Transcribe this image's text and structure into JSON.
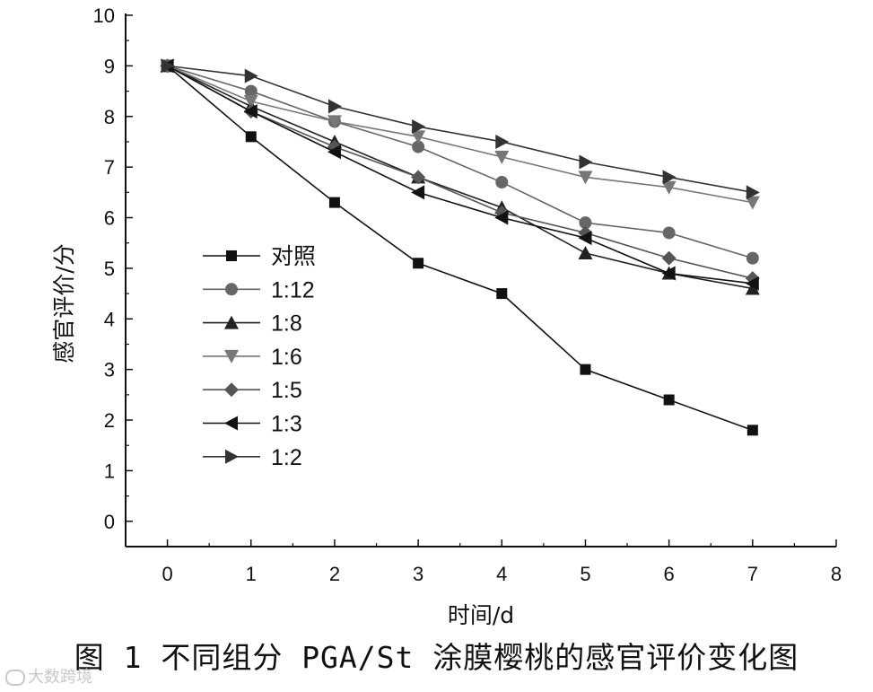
{
  "chart_data": {
    "type": "line",
    "title": "",
    "xlabel": "时间/d",
    "ylabel": "感官评价/分",
    "xlim": [
      -0.5,
      8
    ],
    "ylim": [
      -0.5,
      10
    ],
    "x_ticks": [
      0,
      1,
      2,
      3,
      4,
      5,
      6,
      7,
      8
    ],
    "y_ticks": [
      0,
      1,
      2,
      3,
      4,
      5,
      6,
      7,
      8,
      9,
      10
    ],
    "x": [
      0,
      1,
      2,
      3,
      4,
      5,
      6,
      7
    ],
    "legend_position": "left-center",
    "series": [
      {
        "name": "对照",
        "marker": "square",
        "color": "#111111",
        "values": [
          9.0,
          7.6,
          6.3,
          5.1,
          4.5,
          3.0,
          2.4,
          1.8
        ]
      },
      {
        "name": "1:12",
        "marker": "circle",
        "color": "#666666",
        "values": [
          9.0,
          8.5,
          7.9,
          7.4,
          6.7,
          5.9,
          5.7,
          5.2
        ]
      },
      {
        "name": "1:8",
        "marker": "triangle-up",
        "color": "#222222",
        "values": [
          9.0,
          8.2,
          7.5,
          6.8,
          6.2,
          5.3,
          4.9,
          4.6
        ]
      },
      {
        "name": "1:6",
        "marker": "triangle-down",
        "color": "#777777",
        "values": [
          9.0,
          8.3,
          7.9,
          7.6,
          7.2,
          6.8,
          6.6,
          6.3
        ]
      },
      {
        "name": "1:5",
        "marker": "diamond",
        "color": "#555555",
        "values": [
          9.0,
          8.1,
          7.4,
          6.8,
          6.1,
          5.7,
          5.2,
          4.8
        ]
      },
      {
        "name": "1:3",
        "marker": "triangle-left",
        "color": "#111111",
        "values": [
          9.0,
          8.1,
          7.3,
          6.5,
          6.0,
          5.6,
          4.9,
          4.7
        ]
      },
      {
        "name": "1:2",
        "marker": "triangle-right",
        "color": "#333333",
        "values": [
          9.0,
          8.8,
          8.2,
          7.8,
          7.5,
          7.1,
          6.8,
          6.5
        ]
      }
    ]
  },
  "figure": {
    "caption": "图 1  不同组分 PGA/St 涂膜樱桃的感官评价变化图"
  },
  "watermark": {
    "text": "大数跨境"
  }
}
